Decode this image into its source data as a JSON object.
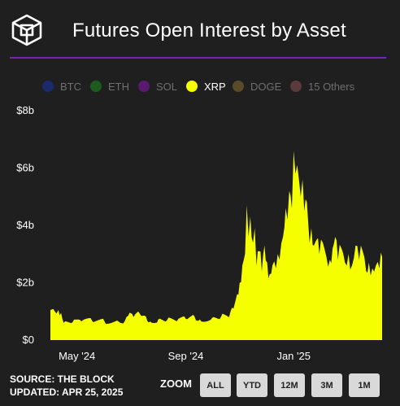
{
  "header": {
    "title": "Futures Open Interest by Asset",
    "logo_icon": "the-block-cube-logo-icon"
  },
  "legend": [
    {
      "label": "BTC",
      "color": "#1b2a6b",
      "active": false
    },
    {
      "label": "ETH",
      "color": "#1d5c1f",
      "active": false
    },
    {
      "label": "SOL",
      "color": "#5a1a6e",
      "active": false
    },
    {
      "label": "XRP",
      "color": "#f5ff00",
      "active": true
    },
    {
      "label": "DOGE",
      "color": "#5a4a2a",
      "active": false
    },
    {
      "label": "15 Others",
      "color": "#5a3a3a",
      "active": false
    }
  ],
  "footer": {
    "source": "SOURCE: THE BLOCK",
    "updated": "UPDATED: APR 25, 2025"
  },
  "zoom": {
    "label": "ZOOM",
    "buttons": [
      "ALL",
      "YTD",
      "12M",
      "3M",
      "1M"
    ]
  },
  "chart_data": {
    "type": "area",
    "series": [
      {
        "name": "XRP",
        "color": "#f5ff00",
        "points": [
          [
            "2024-04-15",
            1.05
          ],
          [
            "2024-04-20",
            1.0
          ],
          [
            "2024-04-24",
            1.05
          ],
          [
            "2024-04-27",
            0.95
          ],
          [
            "2024-04-30",
            0.6
          ],
          [
            "2024-05-10",
            0.62
          ],
          [
            "2024-05-20",
            0.65
          ],
          [
            "2024-06-01",
            0.68
          ],
          [
            "2024-06-15",
            0.66
          ],
          [
            "2024-07-01",
            0.65
          ],
          [
            "2024-07-08",
            0.66
          ],
          [
            "2024-07-12",
            0.85
          ],
          [
            "2024-07-18",
            0.8
          ],
          [
            "2024-07-25",
            0.92
          ],
          [
            "2024-08-01",
            0.82
          ],
          [
            "2024-08-06",
            0.65
          ],
          [
            "2024-08-15",
            0.72
          ],
          [
            "2024-08-25",
            0.7
          ],
          [
            "2024-09-05",
            0.66
          ],
          [
            "2024-09-15",
            0.74
          ],
          [
            "2024-09-25",
            0.82
          ],
          [
            "2024-10-01",
            0.72
          ],
          [
            "2024-10-15",
            0.78
          ],
          [
            "2024-10-25",
            0.82
          ],
          [
            "2024-11-03",
            0.8
          ],
          [
            "2024-11-08",
            1.1
          ],
          [
            "2024-11-12",
            1.6
          ],
          [
            "2024-11-15",
            2.0
          ],
          [
            "2024-11-18",
            2.6
          ],
          [
            "2024-11-21",
            3.0
          ],
          [
            "2024-11-23",
            4.7
          ],
          [
            "2024-11-25",
            3.6
          ],
          [
            "2024-11-27",
            4.3
          ],
          [
            "2024-11-30",
            3.4
          ],
          [
            "2024-12-02",
            3.9
          ],
          [
            "2024-12-04",
            2.6
          ],
          [
            "2024-12-07",
            3.1
          ],
          [
            "2024-12-10",
            2.4
          ],
          [
            "2024-12-13",
            3.3
          ],
          [
            "2024-12-16",
            2.7
          ],
          [
            "2024-12-19",
            2.3
          ],
          [
            "2024-12-22",
            2.6
          ],
          [
            "2024-12-26",
            2.5
          ],
          [
            "2024-12-30",
            2.8
          ],
          [
            "2025-01-03",
            3.6
          ],
          [
            "2025-01-06",
            4.6
          ],
          [
            "2025-01-08",
            4.2
          ],
          [
            "2025-01-10",
            5.2
          ],
          [
            "2025-01-13",
            4.6
          ],
          [
            "2025-01-15",
            6.6
          ],
          [
            "2025-01-17",
            5.8
          ],
          [
            "2025-01-19",
            6.1
          ],
          [
            "2025-01-21",
            5.6
          ],
          [
            "2025-01-23",
            5.0
          ],
          [
            "2025-01-25",
            5.6
          ],
          [
            "2025-01-27",
            4.5
          ],
          [
            "2025-01-30",
            4.8
          ],
          [
            "2025-02-02",
            3.4
          ],
          [
            "2025-02-04",
            3.9
          ],
          [
            "2025-02-07",
            3.3
          ],
          [
            "2025-02-10",
            3.5
          ],
          [
            "2025-02-13",
            3.0
          ],
          [
            "2025-02-17",
            3.4
          ],
          [
            "2025-02-21",
            2.9
          ],
          [
            "2025-02-25",
            2.8
          ],
          [
            "2025-02-28",
            3.2
          ],
          [
            "2025-03-03",
            3.6
          ],
          [
            "2025-03-06",
            2.8
          ],
          [
            "2025-03-10",
            3.2
          ],
          [
            "2025-03-14",
            2.7
          ],
          [
            "2025-03-18",
            3.0
          ],
          [
            "2025-03-22",
            2.6
          ],
          [
            "2025-03-26",
            3.3
          ],
          [
            "2025-03-30",
            2.8
          ],
          [
            "2025-04-03",
            3.1
          ],
          [
            "2025-04-07",
            2.4
          ],
          [
            "2025-04-10",
            2.7
          ],
          [
            "2025-04-14",
            2.5
          ],
          [
            "2025-04-18",
            2.6
          ],
          [
            "2025-04-22",
            2.5
          ],
          [
            "2025-04-25",
            2.9
          ]
        ]
      }
    ],
    "x_range": [
      "2024-04-15",
      "2025-04-25"
    ],
    "x_ticks": [
      {
        "date": "2024-05-15",
        "label": "May '24"
      },
      {
        "date": "2024-09-15",
        "label": "Sep '24"
      },
      {
        "date": "2025-01-15",
        "label": "Jan '25"
      }
    ],
    "ylim": [
      0,
      8
    ],
    "y_ticks": [
      {
        "value": 0,
        "label": "$0"
      },
      {
        "value": 2,
        "label": "$2b"
      },
      {
        "value": 4,
        "label": "$4b"
      },
      {
        "value": 6,
        "label": "$6b"
      },
      {
        "value": 8,
        "label": "$8b"
      }
    ],
    "grid": false,
    "legend_position": "top"
  }
}
